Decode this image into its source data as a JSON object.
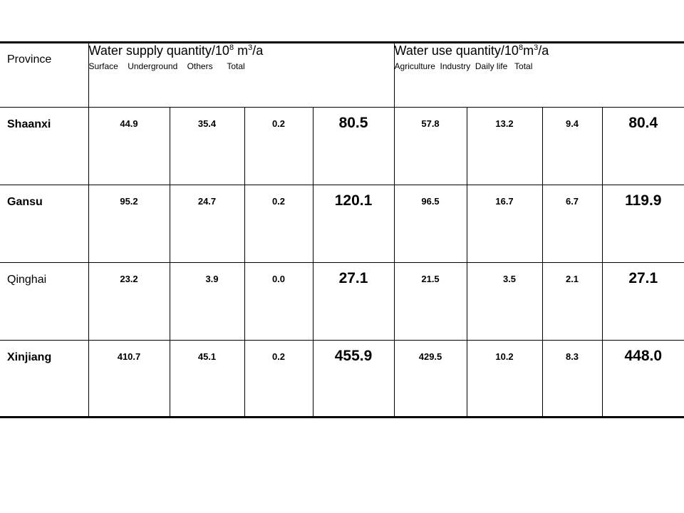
{
  "header": {
    "province": "Province",
    "supply": {
      "title_prefix": "Water supply quantity/10",
      "title_exp": "8",
      "title_unit": " m",
      "title_unit_exp": "3",
      "title_suffix": "/a",
      "sub_labels": "Surface    Underground    Others      Total"
    },
    "use": {
      "title_prefix": "Water use quantity/10",
      "title_exp": "8",
      "title_unit": "m",
      "title_unit_exp": "3",
      "title_suffix": "/a",
      "sub_labels": "Agriculture  Industry  Daily life   Total"
    }
  },
  "rows": [
    {
      "province": "Shaanxi",
      "bold": true,
      "supply": [
        "44.9",
        "35.4",
        "0.2",
        "80.5"
      ],
      "use": [
        "57.8",
        "13.2",
        "9.4",
        "80.4"
      ]
    },
    {
      "province": "Gansu",
      "bold": true,
      "supply": [
        "95.2",
        "24.7",
        "0.2",
        "120.1"
      ],
      "use": [
        "96.5",
        "16.7",
        "6.7",
        "119.9"
      ]
    },
    {
      "province": "Qinghai",
      "bold": false,
      "supply": [
        "23.2",
        "3.9",
        "0.0",
        "27.1"
      ],
      "use": [
        "21.5",
        "3.5",
        "2.1",
        "27.1"
      ]
    },
    {
      "province": "Xinjiang",
      "bold": true,
      "supply": [
        "410.7",
        "45.1",
        "0.2",
        "455.9"
      ],
      "use": [
        "429.5",
        "10.2",
        "8.3",
        "448.0"
      ]
    }
  ]
}
